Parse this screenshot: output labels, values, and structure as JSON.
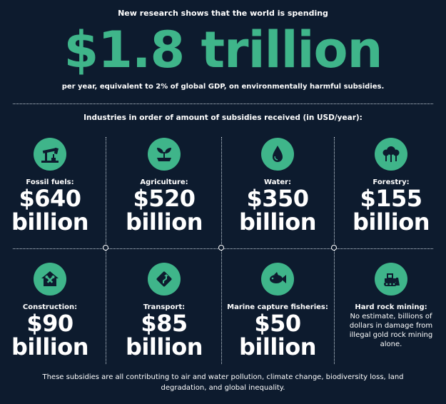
{
  "header": {
    "intro": "New research shows that the world is spending",
    "headline": "$1.8 trillion",
    "subline": "per year, equivalent to 2% of global GDP, on environmentally harmful subsidies.",
    "section_heading": "Industries in order of amount of subsidies received (in USD/year):"
  },
  "industries": [
    {
      "label": "Fossil fuels:",
      "amount": "$640",
      "unit": "billion",
      "icon": "oil-pump-icon"
    },
    {
      "label": "Agriculture:",
      "amount": "$520",
      "unit": "billion",
      "icon": "sprout-icon"
    },
    {
      "label": "Water:",
      "amount": "$350",
      "unit": "billion",
      "icon": "water-drop-icon"
    },
    {
      "label": "Forestry:",
      "amount": "$155",
      "unit": "billion",
      "icon": "trees-icon"
    },
    {
      "label": "Construction:",
      "amount": "$90",
      "unit": "billion",
      "icon": "house-tools-icon"
    },
    {
      "label": "Transport:",
      "amount": "$85",
      "unit": "billion",
      "icon": "road-sign-icon"
    },
    {
      "label": "Marine capture fisheries:",
      "amount": "$50",
      "unit": "billion",
      "icon": "fish-icon"
    },
    {
      "label": "Hard rock mining:",
      "note": "No estimate, billions of dollars in damage from illegal gold rock mining alone.",
      "icon": "bulldozer-icon"
    }
  ],
  "footer": "These subsidies are all contributing to air and water pollution, climate change, biodiversity loss, land degradation, and global inequality.",
  "colors": {
    "background": "#0d1b2e",
    "accent": "#3fb58a",
    "text": "#ffffff"
  }
}
